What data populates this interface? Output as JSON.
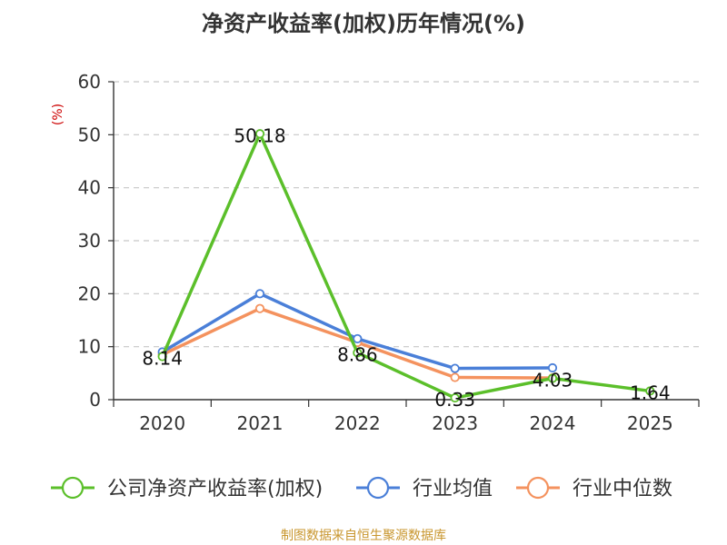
{
  "chart_data": {
    "type": "line",
    "title": "净资产收益率(加权)历年情况(%)",
    "ylabel": "(%)",
    "xlabel": "",
    "categories": [
      "2020",
      "2021",
      "2022",
      "2023",
      "2024",
      "2025"
    ],
    "y_ticks": [
      "0",
      "10",
      "20",
      "30",
      "40",
      "50",
      "60"
    ],
    "ylim": [
      0,
      60
    ],
    "grid": true,
    "legend_position": "bottom",
    "series": [
      {
        "name": "公司净资产收益率(加权)",
        "color": "#5bbf2a",
        "values": [
          8.14,
          50.18,
          8.86,
          0.33,
          4.03,
          1.64
        ],
        "labels": [
          "8.14",
          "50.18",
          "8.86",
          "0.33",
          "4.03",
          "1.64"
        ]
      },
      {
        "name": "行业均值",
        "color": "#4a7fd8",
        "values": [
          9.0,
          20.0,
          11.5,
          5.9,
          6.0,
          null
        ]
      },
      {
        "name": "行业中位数",
        "color": "#f4925e",
        "values": [
          8.5,
          17.2,
          10.8,
          4.2,
          4.1,
          null
        ]
      }
    ],
    "source": "制图数据来自恒生聚源数据库"
  },
  "colors": {
    "title": "#333333",
    "axis": "#333333",
    "grid": "#c8c8c8",
    "ylabel": "#cc0000",
    "source": "#c8962e"
  }
}
